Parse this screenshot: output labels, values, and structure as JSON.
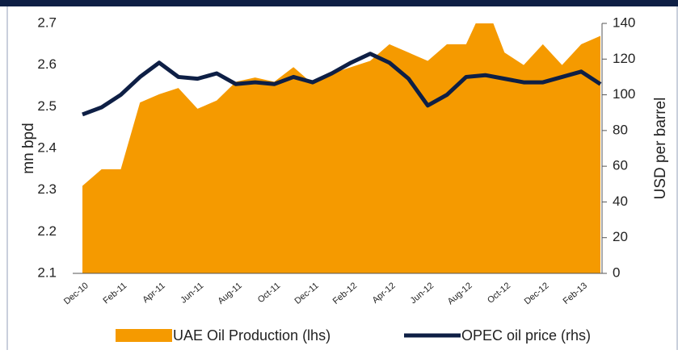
{
  "chart_data": {
    "type": "area_line",
    "categories": [
      "Dec-10",
      null,
      "Feb-11",
      null,
      "Apr-11",
      null,
      "Jun-11",
      null,
      "Aug-11",
      null,
      "Oct-11",
      null,
      "Dec-11",
      null,
      "Feb-12",
      null,
      "Apr-12",
      null,
      "Jun-12",
      null,
      "Aug-12",
      null,
      "Oct-12",
      null,
      "Dec-12",
      null,
      "Feb-13",
      null
    ],
    "series": [
      {
        "name": "UAE Oil Production (lhs)",
        "color": "#f59a00",
        "kind": "area",
        "axis": "y",
        "values": [
          2.31,
          2.35,
          2.35,
          2.51,
          2.53,
          2.545,
          2.495,
          2.515,
          2.56,
          2.57,
          2.56,
          2.595,
          2.555,
          2.58,
          2.595,
          2.61,
          2.65,
          2.63,
          2.61,
          2.65,
          2.65,
          2.75,
          2.63,
          2.6,
          2.65,
          2.6,
          2.65,
          2.67
        ]
      },
      {
        "name": "OPEC oil price (rhs)",
        "color": "#0e1f45",
        "kind": "line",
        "axis": "y2",
        "values": [
          89,
          93,
          100,
          110,
          118,
          110,
          109,
          112,
          106,
          107,
          106,
          110,
          107,
          112,
          118,
          123,
          118,
          109,
          94,
          100,
          110,
          111,
          109,
          107,
          107,
          110,
          113,
          106
        ]
      }
    ],
    "ylabel": "mn bpd",
    "y2label": "USD per barrel",
    "ylim": [
      2.1,
      2.7
    ],
    "yticks": [
      2.1,
      2.2,
      2.3,
      2.4,
      2.5,
      2.6,
      2.7
    ],
    "y2lim": [
      0,
      140
    ],
    "y2ticks": [
      0,
      20,
      40,
      60,
      80,
      100,
      120,
      140
    ],
    "legend": "bottom"
  }
}
